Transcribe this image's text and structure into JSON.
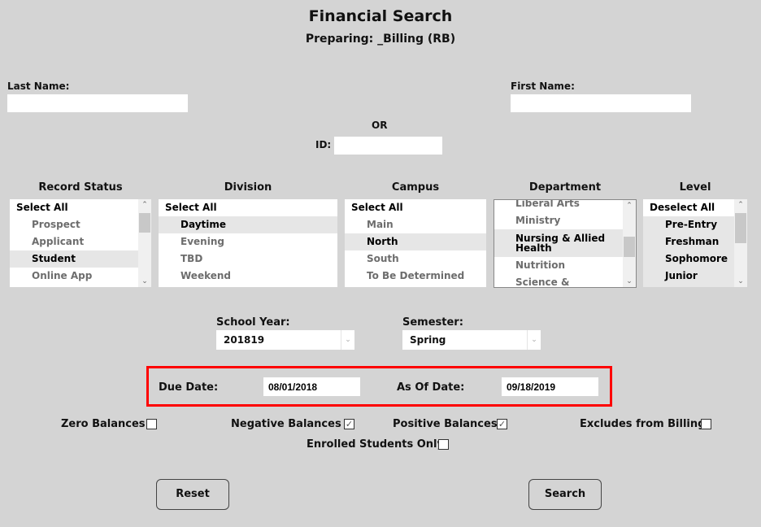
{
  "header": {
    "title": "Financial Search",
    "subtitle": "Preparing: _Billing (RB)"
  },
  "search": {
    "last_name_label": "Last Name:",
    "last_name_value": "",
    "first_name_label": "First Name:",
    "first_name_value": "",
    "or_label": "OR",
    "id_label": "ID:",
    "id_value": ""
  },
  "lists": {
    "record_status": {
      "header": "Record Status",
      "items": [
        "Select All",
        "Prospect",
        "Applicant",
        "Student",
        "Online App"
      ]
    },
    "division": {
      "header": "Division",
      "items": [
        "Select All",
        "Daytime",
        "Evening",
        "TBD",
        "Weekend"
      ]
    },
    "campus": {
      "header": "Campus",
      "items": [
        "Select All",
        "Main",
        "North",
        "South",
        "To Be Determined"
      ]
    },
    "department": {
      "header": "Department",
      "items": [
        "Liberal Arts",
        "Ministry",
        "Nursing & Allied Health",
        "Nutrition",
        "Science &"
      ]
    },
    "level": {
      "header": "Level",
      "items": [
        "Deselect All",
        "Pre-Entry",
        "Freshman",
        "Sophomore",
        "Junior"
      ]
    }
  },
  "filters": {
    "school_year_label": "School Year:",
    "school_year_value": "201819",
    "semester_label": "Semester:",
    "semester_value": "Spring"
  },
  "dates": {
    "due_label": "Due Date:",
    "due_value": "08/01/2018",
    "as_of_label": "As Of Date:",
    "as_of_value": "09/18/2019",
    "highlight_color": "#ff0000"
  },
  "checkboxes": {
    "zero": {
      "label": "Zero Balances",
      "checked": false
    },
    "negative": {
      "label": "Negative Balances",
      "checked": true
    },
    "positive": {
      "label": "Positive Balances",
      "checked": true
    },
    "excludes": {
      "label": "Excludes from Billing",
      "checked": false
    },
    "enrolled": {
      "label": "Enrolled Students Only",
      "checked": false
    }
  },
  "buttons": {
    "reset": "Reset",
    "search": "Search"
  }
}
